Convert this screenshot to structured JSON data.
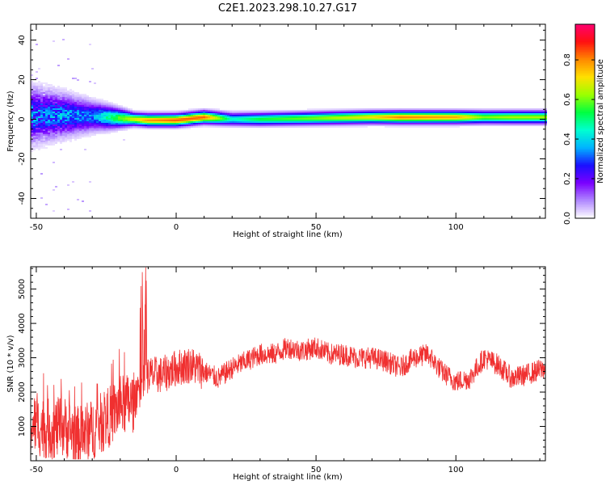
{
  "title": "C2E1.2023.298.10.27.G17",
  "chart_data": [
    {
      "type": "heatmap",
      "xlabel": "Height of straight line (km)",
      "ylabel": "Frequency (Hz)",
      "xlim": [
        -52,
        132
      ],
      "ylim": [
        -50,
        48
      ],
      "xticks": [
        -50,
        0,
        50,
        100
      ],
      "yticks": [
        -40,
        -20,
        0,
        20,
        40
      ],
      "colorbar": {
        "label": "Normalized spectral amplitude",
        "range": [
          0,
          0.98
        ],
        "ticks": [
          0.0,
          0.2,
          0.4,
          0.6,
          0.8
        ],
        "colors": [
          "#ffffff",
          "#b088ff",
          "#7a00ff",
          "#1a10ff",
          "#00b4ff",
          "#00ffd0",
          "#00ff40",
          "#9cff00",
          "#ffe000",
          "#ff8800",
          "#ff1010",
          "#ff0070"
        ]
      },
      "ridge": [
        {
          "x": -50,
          "f": 2.0,
          "amp": 0.32
        },
        {
          "x": -40,
          "f": 2.0,
          "amp": 0.35
        },
        {
          "x": -30,
          "f": 1.5,
          "amp": 0.33
        },
        {
          "x": -20,
          "f": 0.5,
          "amp": 0.6
        },
        {
          "x": -10,
          "f": -0.5,
          "amp": 0.8
        },
        {
          "x": 0,
          "f": -0.5,
          "amp": 0.85
        },
        {
          "x": 10,
          "f": 1.0,
          "amp": 0.85
        },
        {
          "x": 20,
          "f": 0.0,
          "amp": 0.45
        },
        {
          "x": 30,
          "f": 0.0,
          "amp": 0.55
        },
        {
          "x": 50,
          "f": 0.5,
          "amp": 0.62
        },
        {
          "x": 70,
          "f": 1.0,
          "amp": 0.72
        },
        {
          "x": 80,
          "f": 1.0,
          "amp": 0.82
        },
        {
          "x": 90,
          "f": 1.0,
          "amp": 0.8
        },
        {
          "x": 100,
          "f": 1.0,
          "amp": 0.78
        },
        {
          "x": 110,
          "f": 1.0,
          "amp": 0.62
        },
        {
          "x": 120,
          "f": 1.0,
          "amp": 0.65
        },
        {
          "x": 132,
          "f": 1.0,
          "amp": 0.65
        }
      ]
    },
    {
      "type": "line",
      "xlabel": "Height of straight line (km)",
      "ylabel": "SNR (10 * v/v)",
      "xlim": [
        -52,
        132
      ],
      "ylim": [
        0,
        5650
      ],
      "xticks": [
        -50,
        0,
        50,
        100
      ],
      "yticks": [
        1000,
        2000,
        3000,
        4000,
        5000
      ],
      "color": "#f03030",
      "series": [
        {
          "x": [
            -52,
            -45,
            -40,
            -35,
            -30,
            -25,
            -20,
            -15,
            -12,
            -10,
            -5,
            0,
            5,
            10,
            15,
            20,
            25,
            30,
            35,
            40,
            45,
            50,
            55,
            60,
            65,
            70,
            75,
            80,
            85,
            90,
            95,
            100,
            105,
            110,
            115,
            120,
            125,
            132
          ],
          "y": [
            1100,
            900,
            1000,
            700,
            900,
            1200,
            1600,
            1700,
            2300,
            2500,
            2500,
            2700,
            2800,
            2600,
            2400,
            2700,
            2900,
            3100,
            3100,
            3300,
            3200,
            3300,
            3100,
            3100,
            3000,
            3000,
            2900,
            2700,
            3000,
            3100,
            2600,
            2300,
            2400,
            3000,
            2800,
            2400,
            2500,
            2700
          ]
        }
      ]
    }
  ]
}
